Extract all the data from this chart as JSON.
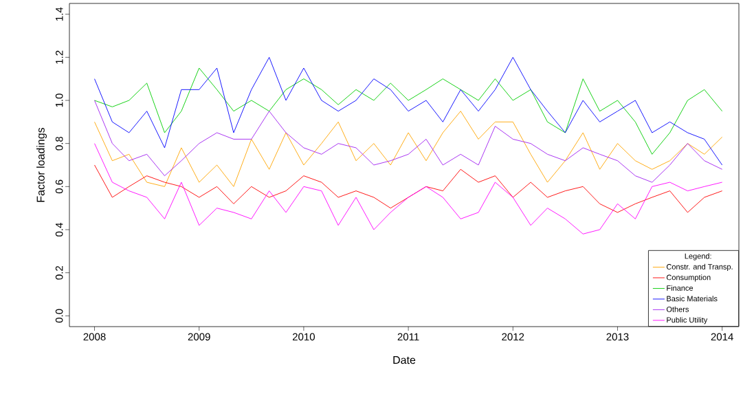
{
  "chart_data": {
    "type": "line",
    "xlabel": "Date",
    "ylabel": "Factor loadings",
    "legend_title": "Legend:",
    "legend": "bottom right",
    "xlim": [
      2007.76,
      2014.16
    ],
    "ylim": [
      -0.05,
      1.45
    ],
    "xticks": [
      2008,
      2009,
      2010,
      2011,
      2012,
      2013,
      2014
    ],
    "yticks": [
      {
        "value": 0,
        "label": "0.0"
      },
      {
        "value": 0.2,
        "label": "0.2"
      },
      {
        "value": 0.4,
        "label": "0.4"
      },
      {
        "value": 0.6,
        "label": "0.6"
      },
      {
        "value": 0.8,
        "label": "0.8"
      },
      {
        "value": 1.0,
        "label": "1.0"
      },
      {
        "value": 1.2,
        "label": "1.2"
      },
      {
        "value": 1.4,
        "label": "1.4"
      }
    ],
    "x": [
      2008.0,
      2008.17,
      2008.33,
      2008.5,
      2008.67,
      2008.83,
      2009.0,
      2009.17,
      2009.33,
      2009.5,
      2009.67,
      2009.83,
      2010.0,
      2010.17,
      2010.33,
      2010.5,
      2010.67,
      2010.83,
      2011.0,
      2011.17,
      2011.33,
      2011.5,
      2011.67,
      2011.83,
      2012.0,
      2012.17,
      2012.33,
      2012.5,
      2012.67,
      2012.83,
      2013.0,
      2013.17,
      2013.33,
      2013.5,
      2013.67,
      2013.83,
      2014.0
    ],
    "series": [
      {
        "name": "Constr. and Transp.",
        "color": "#ffa500",
        "values": [
          0.9,
          0.72,
          0.75,
          0.62,
          0.6,
          0.78,
          0.62,
          0.7,
          0.6,
          0.82,
          0.68,
          0.85,
          0.7,
          0.8,
          0.9,
          0.72,
          0.8,
          0.7,
          0.85,
          0.72,
          0.85,
          0.95,
          0.82,
          0.9,
          0.9,
          0.75,
          0.62,
          0.72,
          0.85,
          0.68,
          0.8,
          0.72,
          0.68,
          0.72,
          0.8,
          0.75,
          0.83
        ]
      },
      {
        "name": "Consumption",
        "color": "#ff0000",
        "values": [
          0.7,
          0.55,
          0.6,
          0.65,
          0.62,
          0.6,
          0.55,
          0.6,
          0.52,
          0.6,
          0.55,
          0.58,
          0.65,
          0.62,
          0.55,
          0.58,
          0.55,
          0.5,
          0.55,
          0.6,
          0.58,
          0.68,
          0.62,
          0.65,
          0.55,
          0.62,
          0.55,
          0.58,
          0.6,
          0.52,
          0.48,
          0.52,
          0.55,
          0.58,
          0.48,
          0.55,
          0.58
        ]
      },
      {
        "name": "Finance",
        "color": "#00cd00",
        "values": [
          1.0,
          0.97,
          1.0,
          1.08,
          0.85,
          0.95,
          1.15,
          1.05,
          0.95,
          1.0,
          0.95,
          1.05,
          1.1,
          1.05,
          0.98,
          1.05,
          1.0,
          1.08,
          1.0,
          1.05,
          1.1,
          1.05,
          1.0,
          1.1,
          1.0,
          1.05,
          0.9,
          0.85,
          1.1,
          0.95,
          1.0,
          0.9,
          0.75,
          0.85,
          1.0,
          1.05,
          0.95
        ]
      },
      {
        "name": "Basic Materials",
        "color": "#0000ff",
        "values": [
          1.1,
          0.9,
          0.85,
          0.95,
          0.78,
          1.05,
          1.05,
          1.15,
          0.85,
          1.05,
          1.2,
          1.0,
          1.15,
          1.0,
          0.95,
          1.0,
          1.1,
          1.05,
          0.95,
          1.0,
          0.9,
          1.05,
          0.95,
          1.05,
          1.2,
          1.05,
          0.95,
          0.85,
          1.0,
          0.9,
          0.95,
          1.0,
          0.85,
          0.9,
          0.85,
          0.82,
          0.7
        ]
      },
      {
        "name": "Others",
        "color": "#a020f0",
        "values": [
          1.0,
          0.8,
          0.72,
          0.75,
          0.65,
          0.72,
          0.8,
          0.85,
          0.82,
          0.82,
          0.95,
          0.85,
          0.78,
          0.75,
          0.8,
          0.78,
          0.7,
          0.72,
          0.75,
          0.82,
          0.7,
          0.75,
          0.7,
          0.88,
          0.82,
          0.8,
          0.75,
          0.72,
          0.78,
          0.75,
          0.72,
          0.65,
          0.62,
          0.7,
          0.8,
          0.72,
          0.68
        ]
      },
      {
        "name": "Public Utility",
        "color": "#ff00ff",
        "values": [
          0.8,
          0.62,
          0.58,
          0.55,
          0.45,
          0.62,
          0.42,
          0.5,
          0.48,
          0.45,
          0.58,
          0.48,
          0.6,
          0.58,
          0.42,
          0.55,
          0.4,
          0.48,
          0.55,
          0.6,
          0.55,
          0.45,
          0.48,
          0.62,
          0.55,
          0.42,
          0.5,
          0.45,
          0.38,
          0.4,
          0.52,
          0.45,
          0.6,
          0.62,
          0.58,
          0.6,
          0.62
        ]
      }
    ]
  }
}
